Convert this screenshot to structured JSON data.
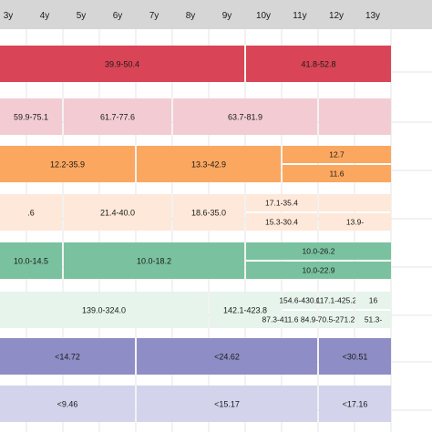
{
  "chart_data": {
    "type": "table",
    "columns": [
      "3y",
      "4y",
      "5y",
      "6y",
      "7y",
      "8y",
      "9y",
      "10y",
      "11y",
      "12y",
      "13y"
    ],
    "rows": [
      {
        "color": "#d94556",
        "cells": [
          {
            "start": 0,
            "end": 7,
            "label": "39.9-50.4"
          },
          {
            "start": 7,
            "end": 11,
            "label": "41.8-52.8"
          }
        ]
      },
      {
        "color": "#f3ccd3",
        "cells": [
          {
            "start": 0,
            "end": 2,
            "label": "59.9-75.1"
          },
          {
            "start": 2,
            "end": 5,
            "label": "61.7-77.6"
          },
          {
            "start": 5,
            "end": 9,
            "label": "63.7-81.9"
          },
          {
            "start": 9,
            "end": 11,
            "label": ""
          }
        ]
      },
      {
        "color": "#fba75f",
        "cells": [
          {
            "start": 0,
            "end": 4,
            "label": "12.2-35.9"
          },
          {
            "start": 4,
            "end": 8,
            "label": "13.3-42.9"
          },
          {
            "start": 8,
            "end": 11,
            "label": "12.7",
            "half": "top"
          },
          {
            "start": 8,
            "end": 11,
            "label": "11.6",
            "half": "bottom"
          }
        ]
      },
      {
        "color": "#fee8d9",
        "cells": [
          {
            "start": 0,
            "end": 2,
            "label": ".6"
          },
          {
            "start": 2,
            "end": 5,
            "label": "21.4-40.0"
          },
          {
            "start": 5,
            "end": 7,
            "label": "18.6-35.0"
          },
          {
            "start": 7,
            "end": 9,
            "label": "17.1-35.4",
            "half": "top"
          },
          {
            "start": 7,
            "end": 9,
            "label": "15.3-30.4",
            "half": "bottom"
          },
          {
            "start": 9,
            "end": 11,
            "label": "",
            "half": "top"
          },
          {
            "start": 9,
            "end": 11,
            "label": "13.9-",
            "half": "bottom"
          }
        ]
      },
      {
        "color": "#7ac29f",
        "cells": [
          {
            "start": 0,
            "end": 2,
            "label": "10.0-14.5"
          },
          {
            "start": 2,
            "end": 7,
            "label": "10.0-18.2"
          },
          {
            "start": 7,
            "end": 11,
            "label": "10.0-26.2",
            "half": "top"
          },
          {
            "start": 7,
            "end": 11,
            "label": "10.0-22.9",
            "half": "bottom"
          }
        ]
      },
      {
        "color": "#e6f4ec",
        "cells": [
          {
            "start": 0,
            "end": 6,
            "label": "139.0-324.0"
          },
          {
            "start": 6,
            "end": 8,
            "label": "142.1-423.8"
          },
          {
            "start": 8,
            "end": 9,
            "label": "154.6-430.0",
            "half": "top"
          },
          {
            "start": 8,
            "end": 9,
            "label": "87.3-411.6 84.9-334.4",
            "half": "bottom"
          },
          {
            "start": 9,
            "end": 10,
            "label": "117.1-425.2",
            "half": "top"
          },
          {
            "start": 9,
            "end": 10,
            "label": "70.5-271.2",
            "half": "bottom"
          },
          {
            "start": 10,
            "end": 11,
            "label": "16",
            "half": "top"
          },
          {
            "start": 10,
            "end": 11,
            "label": "51.3-",
            "half": "bottom"
          }
        ]
      },
      {
        "color": "#8f8dc6",
        "cells": [
          {
            "start": 0,
            "end": 4,
            "label": "<14.72"
          },
          {
            "start": 4,
            "end": 9,
            "label": "<24.62"
          },
          {
            "start": 9,
            "end": 11,
            "label": "<30.51"
          }
        ]
      },
      {
        "color": "#d3d3ec",
        "cells": [
          {
            "start": 0,
            "end": 4,
            "label": "<9.46"
          },
          {
            "start": 4,
            "end": 9,
            "label": "<15.17"
          },
          {
            "start": 9,
            "end": 11,
            "label": "<17.16"
          }
        ]
      }
    ]
  }
}
